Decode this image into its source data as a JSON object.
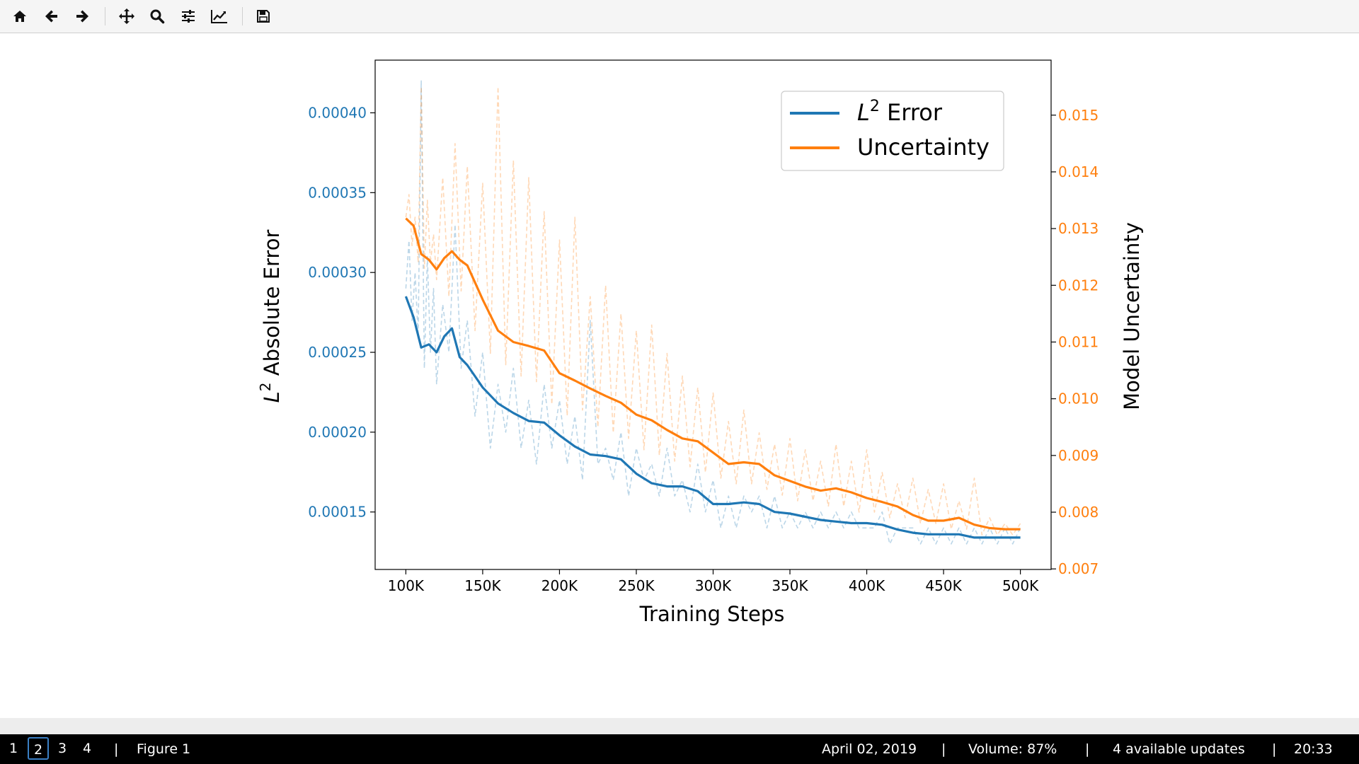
{
  "toolbar": {
    "buttons": [
      {
        "name": "home-icon",
        "label": "Home"
      },
      {
        "name": "back-arrow-icon",
        "label": "Back"
      },
      {
        "name": "forward-arrow-icon",
        "label": "Forward"
      },
      {
        "name": "pan-icon",
        "label": "Pan"
      },
      {
        "name": "zoom-icon",
        "label": "Zoom"
      },
      {
        "name": "subplots-config-icon",
        "label": "Configure subplots"
      },
      {
        "name": "edit-axes-icon",
        "label": "Edit axis"
      },
      {
        "name": "save-icon",
        "label": "Save"
      }
    ]
  },
  "chart_data": {
    "type": "line",
    "title": "",
    "xlabel": "Training Steps",
    "ylabel_left_prefix": "L",
    "ylabel_left_sup": "2",
    "ylabel_left_suffix": " Absolute Error",
    "ylabel_right": "Model Uncertainty",
    "xlim": [
      80000,
      520000
    ],
    "ylim_left": [
      0.000114,
      0.000433
    ],
    "ylim_right": [
      0.00699,
      0.01597
    ],
    "x_ticks": [
      100000,
      150000,
      200000,
      250000,
      300000,
      350000,
      400000,
      450000,
      500000
    ],
    "x_tick_labels": [
      "100K",
      "150K",
      "200K",
      "250K",
      "300K",
      "350K",
      "400K",
      "450K",
      "500K"
    ],
    "y_left_ticks": [
      0.00015,
      0.0002,
      0.00025,
      0.0003,
      0.00035,
      0.0004
    ],
    "y_left_tick_labels": [
      "0.00015",
      "0.00020",
      "0.00025",
      "0.00030",
      "0.00035",
      "0.00040"
    ],
    "y_right_ticks": [
      0.007,
      0.008,
      0.009,
      0.01,
      0.011,
      0.012,
      0.013,
      0.014,
      0.015
    ],
    "y_right_tick_labels": [
      "0.007",
      "0.008",
      "0.009",
      "0.010",
      "0.011",
      "0.012",
      "0.013",
      "0.014",
      "0.015"
    ],
    "legend_placement": "top-right",
    "grid": false,
    "colors": {
      "error": "#1f77b4",
      "uncertainty": "#ff7f0e"
    },
    "series": [
      {
        "name_prefix": "L",
        "name_sup": "2",
        "name_suffix": " Error",
        "axis": "left",
        "style": "solid",
        "x": [
          100000,
          105000,
          110000,
          115000,
          120000,
          125000,
          130000,
          135000,
          140000,
          145000,
          150000,
          160000,
          170000,
          180000,
          190000,
          200000,
          210000,
          220000,
          230000,
          240000,
          250000,
          260000,
          270000,
          280000,
          290000,
          300000,
          310000,
          320000,
          330000,
          340000,
          350000,
          360000,
          370000,
          380000,
          390000,
          400000,
          410000,
          420000,
          430000,
          440000,
          450000,
          460000,
          470000,
          480000,
          490000,
          500000
        ],
        "y": [
          0.000285,
          0.000272,
          0.000253,
          0.000255,
          0.00025,
          0.00026,
          0.000265,
          0.000247,
          0.000242,
          0.000235,
          0.000228,
          0.000218,
          0.000212,
          0.000207,
          0.000206,
          0.000198,
          0.000191,
          0.000186,
          0.000185,
          0.000183,
          0.000174,
          0.000168,
          0.000166,
          0.000166,
          0.000163,
          0.000155,
          0.000155,
          0.000156,
          0.000155,
          0.00015,
          0.000149,
          0.000147,
          0.000145,
          0.000144,
          0.000143,
          0.000143,
          0.000142,
          0.000139,
          0.000137,
          0.000136,
          0.000136,
          0.000136,
          0.000134,
          0.000134,
          0.000134,
          0.000134
        ]
      },
      {
        "name": "Uncertainty",
        "axis": "right",
        "style": "solid",
        "x": [
          100000,
          105000,
          110000,
          115000,
          120000,
          125000,
          130000,
          135000,
          140000,
          145000,
          150000,
          160000,
          170000,
          180000,
          190000,
          200000,
          210000,
          220000,
          230000,
          240000,
          250000,
          260000,
          270000,
          280000,
          290000,
          300000,
          310000,
          320000,
          330000,
          340000,
          350000,
          360000,
          370000,
          380000,
          390000,
          400000,
          410000,
          420000,
          430000,
          440000,
          450000,
          460000,
          470000,
          480000,
          490000,
          500000
        ],
        "y": [
          0.01318,
          0.01305,
          0.01255,
          0.01245,
          0.01228,
          0.01248,
          0.0126,
          0.01245,
          0.01235,
          0.01205,
          0.01175,
          0.0112,
          0.011,
          0.01093,
          0.01085,
          0.01045,
          0.01032,
          0.01018,
          0.01005,
          0.00993,
          0.00972,
          0.00962,
          0.00945,
          0.0093,
          0.00925,
          0.00905,
          0.00885,
          0.00888,
          0.00885,
          0.00865,
          0.00855,
          0.00845,
          0.00838,
          0.00842,
          0.00835,
          0.00825,
          0.00818,
          0.0081,
          0.00795,
          0.00785,
          0.00785,
          0.0079,
          0.00778,
          0.00772,
          0.0077,
          0.0077
        ]
      },
      {
        "axis": "left",
        "style": "dashed-faint",
        "x": [
          100000,
          102000,
          104000,
          106000,
          108000,
          110000,
          112000,
          114000,
          116000,
          118000,
          120000,
          124000,
          128000,
          132000,
          136000,
          140000,
          145000,
          150000,
          155000,
          160000,
          165000,
          170000,
          175000,
          180000,
          185000,
          190000,
          195000,
          200000,
          205000,
          210000,
          215000,
          220000,
          225000,
          230000,
          235000,
          240000,
          245000,
          250000,
          255000,
          260000,
          265000,
          270000,
          275000,
          280000,
          285000,
          290000,
          295000,
          300000,
          305000,
          310000,
          315000,
          320000,
          325000,
          330000,
          335000,
          340000,
          345000,
          350000,
          355000,
          360000,
          365000,
          370000,
          375000,
          380000,
          385000,
          390000,
          395000,
          400000,
          405000,
          410000,
          415000,
          420000,
          425000,
          430000,
          435000,
          440000,
          445000,
          450000,
          455000,
          460000,
          465000,
          470000,
          475000,
          480000,
          485000,
          490000,
          495000,
          500000
        ],
        "y": [
          0.00029,
          0.00032,
          0.00027,
          0.0003,
          0.00026,
          0.00042,
          0.00024,
          0.00031,
          0.00025,
          0.00029,
          0.00023,
          0.00028,
          0.00025,
          0.00033,
          0.00024,
          0.00027,
          0.00021,
          0.00025,
          0.00019,
          0.00023,
          0.0002,
          0.00024,
          0.00019,
          0.00022,
          0.00018,
          0.00023,
          0.00019,
          0.00022,
          0.00018,
          0.00021,
          0.00017,
          0.00027,
          0.00018,
          0.00019,
          0.00017,
          0.0002,
          0.00016,
          0.00019,
          0.00017,
          0.00018,
          0.00016,
          0.00019,
          0.00016,
          0.00017,
          0.00015,
          0.00018,
          0.00015,
          0.00017,
          0.00014,
          0.00016,
          0.00014,
          0.00016,
          0.00015,
          0.00016,
          0.00014,
          0.00016,
          0.00014,
          0.00015,
          0.00014,
          0.00015,
          0.00014,
          0.00015,
          0.00014,
          0.00015,
          0.00014,
          0.00015,
          0.00014,
          0.00014,
          0.00014,
          0.00015,
          0.00013,
          0.00014,
          0.00014,
          0.00014,
          0.00013,
          0.00014,
          0.00013,
          0.00014,
          0.00013,
          0.00014,
          0.00013,
          0.00014,
          0.00013,
          0.00014,
          0.00013,
          0.00014,
          0.00013,
          0.00014
        ]
      },
      {
        "axis": "right",
        "style": "dashed-faint",
        "x": [
          100000,
          102000,
          104000,
          106000,
          108000,
          110000,
          112000,
          114000,
          116000,
          118000,
          120000,
          124000,
          128000,
          132000,
          136000,
          140000,
          145000,
          150000,
          155000,
          160000,
          165000,
          170000,
          175000,
          180000,
          185000,
          190000,
          195000,
          200000,
          205000,
          210000,
          215000,
          220000,
          225000,
          230000,
          235000,
          240000,
          245000,
          250000,
          255000,
          260000,
          265000,
          270000,
          275000,
          280000,
          285000,
          290000,
          295000,
          300000,
          305000,
          310000,
          315000,
          320000,
          325000,
          330000,
          335000,
          340000,
          345000,
          350000,
          355000,
          360000,
          365000,
          370000,
          375000,
          380000,
          385000,
          390000,
          395000,
          400000,
          405000,
          410000,
          415000,
          420000,
          425000,
          430000,
          435000,
          440000,
          445000,
          450000,
          455000,
          460000,
          465000,
          470000,
          475000,
          480000,
          485000,
          490000,
          495000,
          500000
        ],
        "y": [
          0.0132,
          0.0136,
          0.0127,
          0.0132,
          0.0124,
          0.0155,
          0.0123,
          0.0135,
          0.0124,
          0.0129,
          0.0121,
          0.0139,
          0.0118,
          0.0145,
          0.0119,
          0.0141,
          0.0112,
          0.0138,
          0.0108,
          0.0155,
          0.0106,
          0.0142,
          0.0104,
          0.0139,
          0.0103,
          0.0133,
          0.0099,
          0.0128,
          0.0097,
          0.0132,
          0.0098,
          0.0118,
          0.0095,
          0.012,
          0.0094,
          0.0115,
          0.0093,
          0.0112,
          0.0091,
          0.0113,
          0.009,
          0.0108,
          0.0089,
          0.0104,
          0.0088,
          0.0102,
          0.0087,
          0.0101,
          0.0086,
          0.0096,
          0.0085,
          0.0098,
          0.0085,
          0.0094,
          0.0084,
          0.0092,
          0.0083,
          0.0093,
          0.0082,
          0.0091,
          0.0082,
          0.0089,
          0.0081,
          0.0092,
          0.0081,
          0.0089,
          0.008,
          0.0091,
          0.008,
          0.0087,
          0.0079,
          0.0085,
          0.0079,
          0.0086,
          0.0078,
          0.0084,
          0.0078,
          0.0085,
          0.0077,
          0.0082,
          0.0077,
          0.0086,
          0.0076,
          0.0079,
          0.0076,
          0.0078,
          0.0076,
          0.0078
        ]
      }
    ]
  },
  "statusbar": {
    "workspaces": [
      "1",
      "2",
      "3",
      "4"
    ],
    "active_workspace": "2",
    "separator": "|",
    "window_title": "Figure 1",
    "date": "April 02,  2019",
    "volume": "Volume:  87%",
    "updates": "4  available updates",
    "time": "20:33"
  }
}
